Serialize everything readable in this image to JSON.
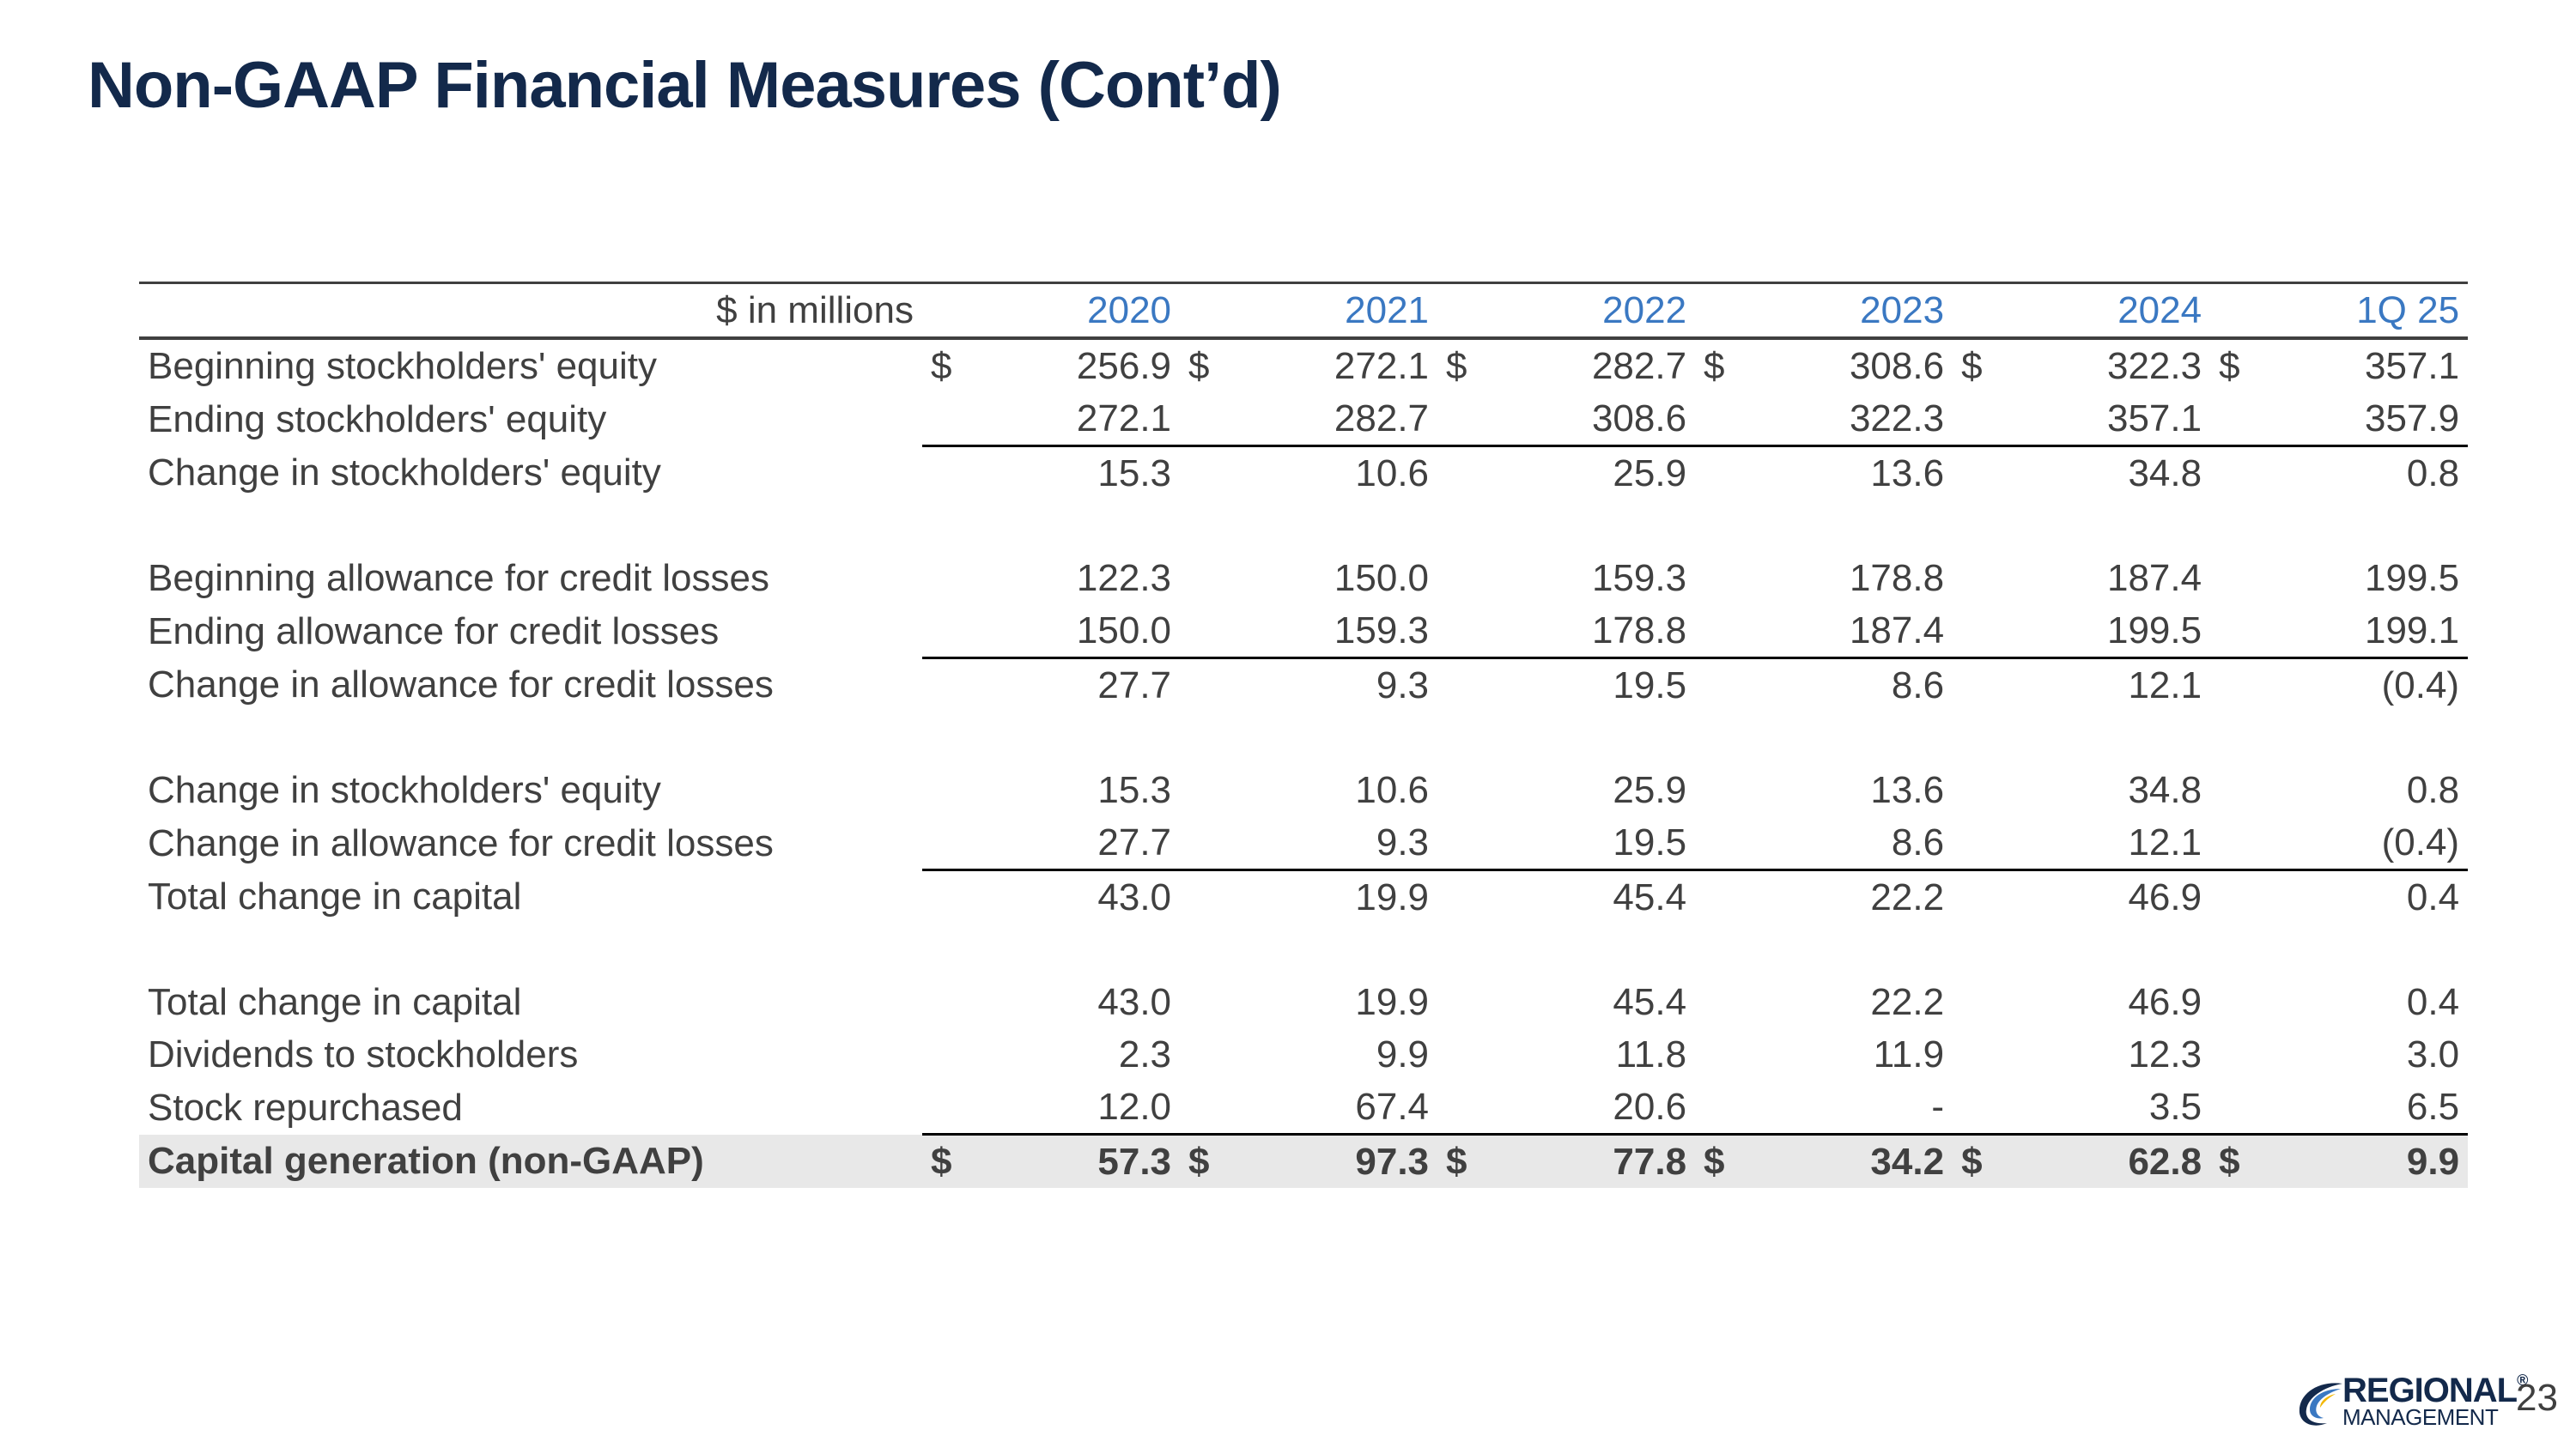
{
  "title": "Non-GAAP Financial Measures (Cont’d)",
  "table": {
    "unit_label": "$ in millions",
    "years": [
      "2020",
      "2021",
      "2022",
      "2023",
      "2024",
      "1Q 25"
    ],
    "rows": [
      {
        "label": "Beginning stockholders' equity",
        "dollar": "$",
        "values": [
          "256.9",
          "272.1",
          "282.7",
          "308.6",
          "322.3",
          "357.1"
        ]
      },
      {
        "label": "Ending stockholders' equity",
        "dollar": "",
        "values": [
          "272.1",
          "282.7",
          "308.6",
          "322.3",
          "357.1",
          "357.9"
        ]
      },
      {
        "label": "Change in stockholders' equity",
        "dollar": "",
        "values": [
          "15.3",
          "10.6",
          "25.9",
          "13.6",
          "34.8",
          "0.8"
        ]
      },
      {
        "label": "Beginning allowance for credit losses",
        "dollar": "",
        "values": [
          "122.3",
          "150.0",
          "159.3",
          "178.8",
          "187.4",
          "199.5"
        ]
      },
      {
        "label": "Ending allowance for credit losses",
        "dollar": "",
        "values": [
          "150.0",
          "159.3",
          "178.8",
          "187.4",
          "199.5",
          "199.1"
        ]
      },
      {
        "label": "Change in allowance for credit losses",
        "dollar": "",
        "values": [
          "27.7",
          "9.3",
          "19.5",
          "8.6",
          "12.1",
          "(0.4)"
        ]
      },
      {
        "label": "Change in stockholders' equity",
        "dollar": "",
        "values": [
          "15.3",
          "10.6",
          "25.9",
          "13.6",
          "34.8",
          "0.8"
        ]
      },
      {
        "label": "Change in allowance for credit losses",
        "dollar": "",
        "values": [
          "27.7",
          "9.3",
          "19.5",
          "8.6",
          "12.1",
          "(0.4)"
        ]
      },
      {
        "label": "Total change in capital",
        "dollar": "",
        "values": [
          "43.0",
          "19.9",
          "45.4",
          "22.2",
          "46.9",
          "0.4"
        ]
      },
      {
        "label": "Total change in capital",
        "dollar": "",
        "values": [
          "43.0",
          "19.9",
          "45.4",
          "22.2",
          "46.9",
          "0.4"
        ]
      },
      {
        "label": "Dividends to stockholders",
        "dollar": "",
        "values": [
          "2.3",
          "9.9",
          "11.8",
          "11.9",
          "12.3",
          "3.0"
        ]
      },
      {
        "label": "Stock repurchased",
        "dollar": "",
        "values": [
          "12.0",
          "67.4",
          "20.6",
          "-",
          "3.5",
          "6.5"
        ]
      },
      {
        "label": "Capital generation (non-GAAP)",
        "dollar": "$",
        "values": [
          "57.3",
          "97.3",
          "77.8",
          "34.2",
          "62.8",
          "9.9"
        ]
      }
    ]
  },
  "logo": {
    "line1": "REGIONAL",
    "line2": "MANAGEMENT",
    "mark": "®"
  },
  "page_number": "23",
  "colors": {
    "title": "#13294b",
    "year_header": "#3a78c2",
    "total_band": "#e8e8e8"
  }
}
